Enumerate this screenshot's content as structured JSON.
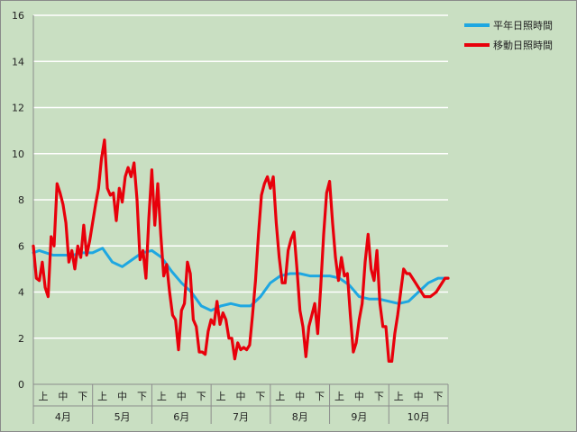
{
  "chart_data": {
    "type": "line",
    "ylim": [
      0,
      16
    ],
    "y_ticks": [
      0,
      2,
      4,
      6,
      8,
      10,
      12,
      14,
      16
    ],
    "grid": "horizontal",
    "legend_placement": "top-right",
    "x_sub_labels": [
      "上",
      "中",
      "下"
    ],
    "months": [
      "4月",
      "5月",
      "6月",
      "7月",
      "8月",
      "9月",
      "10月"
    ],
    "series": [
      {
        "name": "平年日照時間",
        "color": "#1ea7e1",
        "x": [
          0,
          0.3,
          1,
          1.5,
          2,
          2.5,
          3,
          3.5,
          4,
          4.5,
          5,
          5.5,
          6,
          6.5,
          7,
          7.5,
          8,
          8.5,
          9,
          9.5,
          10,
          10.5,
          11,
          11.5,
          12,
          12.5,
          13,
          13.5,
          14,
          14.5,
          15,
          15.5,
          16,
          16.5,
          17,
          17.5,
          18,
          18.5,
          19,
          19.5,
          20,
          20.5,
          21
        ],
        "y": [
          5.7,
          5.8,
          5.6,
          5.6,
          5.6,
          5.7,
          5.7,
          5.9,
          5.3,
          5.1,
          5.4,
          5.7,
          5.8,
          5.5,
          4.9,
          4.4,
          4.0,
          3.4,
          3.2,
          3.4,
          3.5,
          3.4,
          3.4,
          3.8,
          4.4,
          4.7,
          4.8,
          4.8,
          4.7,
          4.7,
          4.7,
          4.6,
          4.3,
          3.8,
          3.7,
          3.7,
          3.6,
          3.5,
          3.6,
          4.0,
          4.4,
          4.6,
          4.6
        ]
      },
      {
        "name": "移動日照時間",
        "color": "#e8000b",
        "x": [
          0,
          0.15,
          0.3,
          0.45,
          0.6,
          0.75,
          0.9,
          1.05,
          1.2,
          1.35,
          1.5,
          1.65,
          1.8,
          1.95,
          2.1,
          2.25,
          2.4,
          2.55,
          2.7,
          2.85,
          3.0,
          3.15,
          3.3,
          3.45,
          3.6,
          3.75,
          3.9,
          4.05,
          4.2,
          4.35,
          4.5,
          4.65,
          4.8,
          4.95,
          5.1,
          5.25,
          5.4,
          5.55,
          5.7,
          5.85,
          6.0,
          6.15,
          6.3,
          6.45,
          6.6,
          6.75,
          6.9,
          7.05,
          7.2,
          7.35,
          7.5,
          7.65,
          7.8,
          7.95,
          8.1,
          8.25,
          8.4,
          8.55,
          8.7,
          8.85,
          9.0,
          9.15,
          9.3,
          9.45,
          9.6,
          9.75,
          9.9,
          10.05,
          10.2,
          10.35,
          10.5,
          10.65,
          10.8,
          10.95,
          11.1,
          11.25,
          11.4,
          11.55,
          11.7,
          11.85,
          12.0,
          12.15,
          12.3,
          12.45,
          12.6,
          12.75,
          12.9,
          13.05,
          13.2,
          13.35,
          13.5,
          13.65,
          13.8,
          13.95,
          14.1,
          14.25,
          14.4,
          14.55,
          14.7,
          14.85,
          15.0,
          15.15,
          15.3,
          15.45,
          15.6,
          15.75,
          15.9,
          16.05,
          16.2,
          16.35,
          16.5,
          16.65,
          16.8,
          16.95,
          17.1,
          17.25,
          17.4,
          17.55,
          17.7,
          17.85,
          18.0,
          18.15,
          18.3,
          18.45,
          18.6,
          18.75,
          18.9,
          19.05,
          19.2,
          19.35,
          19.5,
          19.65,
          19.8,
          19.95,
          20.1,
          20.25,
          20.4,
          20.55,
          20.7,
          20.85,
          21.0
        ],
        "y": [
          6.0,
          4.6,
          4.5,
          5.3,
          4.2,
          3.8,
          6.4,
          6.0,
          8.7,
          8.3,
          7.8,
          7.0,
          5.3,
          5.8,
          5.0,
          6.0,
          5.5,
          6.9,
          5.6,
          6.2,
          7.0,
          7.8,
          8.5,
          9.8,
          10.6,
          8.5,
          8.2,
          8.3,
          7.1,
          8.5,
          7.9,
          9.0,
          9.4,
          9.0,
          9.6,
          8.0,
          5.4,
          5.8,
          4.6,
          7.2,
          9.3,
          6.9,
          8.7,
          6.5,
          4.7,
          5.2,
          4.0,
          3.0,
          2.8,
          1.5,
          3.2,
          3.5,
          5.3,
          4.8,
          2.8,
          2.5,
          1.4,
          1.4,
          1.3,
          2.3,
          2.8,
          2.6,
          3.6,
          2.6,
          3.1,
          2.8,
          2.0,
          2.0,
          1.1,
          1.8,
          1.5,
          1.6,
          1.5,
          1.7,
          3.0,
          4.5,
          6.5,
          8.2,
          8.7,
          9.0,
          8.5,
          9.0,
          7.0,
          5.5,
          4.4,
          4.4,
          5.8,
          6.3,
          6.6,
          5.0,
          3.2,
          2.5,
          1.2,
          2.5,
          3.0,
          3.5,
          2.2,
          4.2,
          6.5,
          8.3,
          8.8,
          7.0,
          5.5,
          4.5,
          5.5,
          4.7,
          4.8,
          3.0,
          1.4,
          1.8,
          2.8,
          3.5,
          5.3,
          6.5,
          5.0,
          4.5,
          5.8,
          3.5,
          2.5,
          2.5,
          1.0,
          1.0,
          2.2,
          3.0,
          4.0,
          5.0,
          4.8,
          4.8,
          4.6,
          4.4,
          4.2,
          4.0,
          3.8,
          3.8,
          3.8,
          3.9,
          4.0,
          4.2,
          4.4,
          4.6,
          4.6
        ]
      }
    ]
  }
}
